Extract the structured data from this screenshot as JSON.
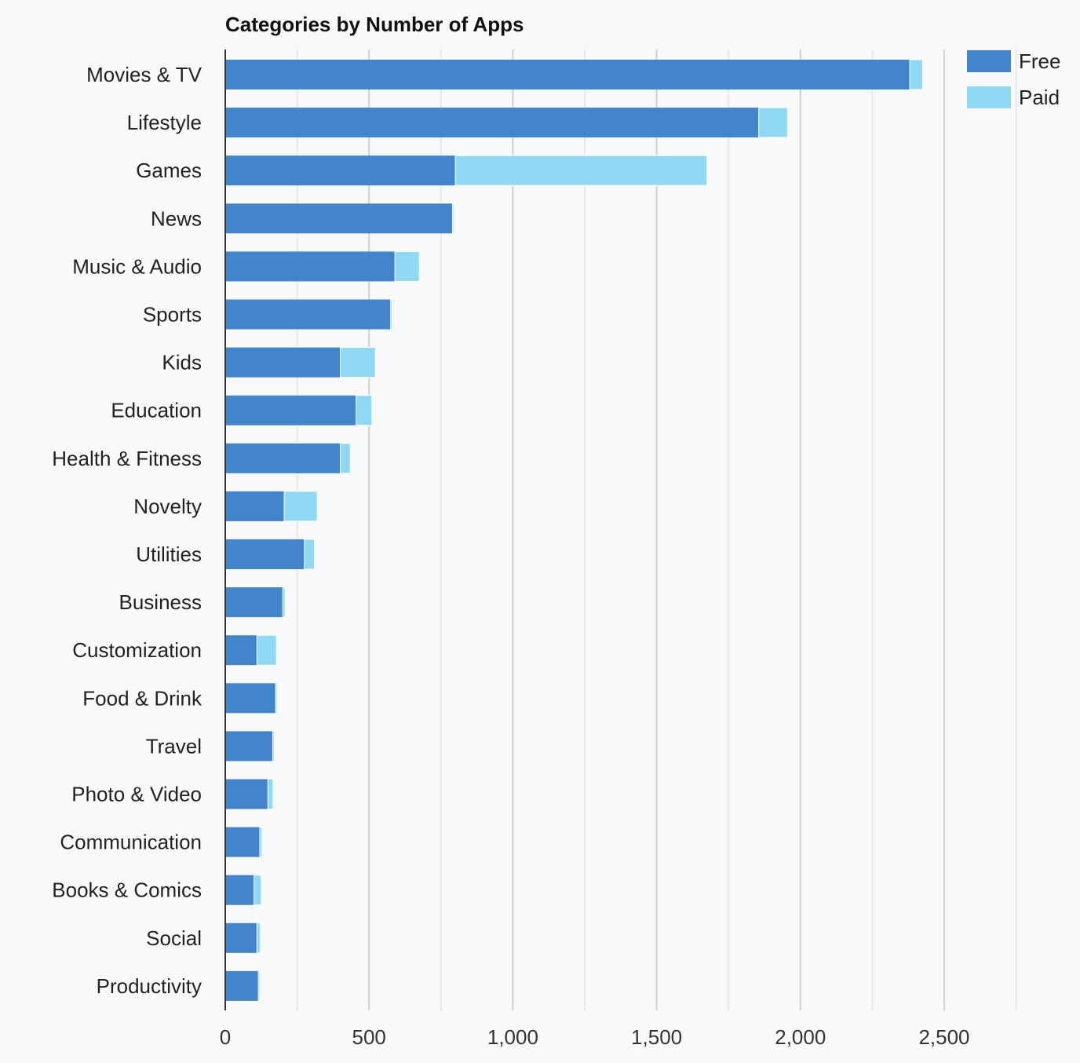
{
  "chart_data": {
    "type": "bar",
    "orientation": "horizontal",
    "stacked": true,
    "title": "Categories by Number of Apps",
    "xlabel": "",
    "ylabel": "",
    "xlim": [
      0,
      2800
    ],
    "x_ticks": [
      0,
      500,
      1000,
      1500,
      2000,
      2500
    ],
    "x_tick_labels": [
      "0",
      "500",
      "1,000",
      "1,500",
      "2,000",
      "2,500"
    ],
    "grid": true,
    "legend_position": "top-right",
    "categories": [
      "Movies & TV",
      "Lifestyle",
      "Games",
      "News",
      "Music & Audio",
      "Sports",
      "Kids",
      "Education",
      "Health & Fitness",
      "Novelty",
      "Utilities",
      "Business",
      "Customization",
      "Food & Drink",
      "Travel",
      "Photo & Video",
      "Communication",
      "Books & Comics",
      "Social",
      "Productivity"
    ],
    "series": [
      {
        "name": "Free",
        "color": "#4285cc",
        "values": [
          2380,
          1855,
          800,
          790,
          590,
          575,
          400,
          455,
          400,
          205,
          275,
          200,
          110,
          175,
          165,
          148,
          120,
          100,
          110,
          115
        ]
      },
      {
        "name": "Paid",
        "color": "#8fd9f5",
        "values": [
          45,
          100,
          875,
          5,
          85,
          5,
          122,
          55,
          35,
          115,
          35,
          8,
          68,
          5,
          5,
          18,
          8,
          25,
          12,
          5
        ]
      }
    ]
  }
}
